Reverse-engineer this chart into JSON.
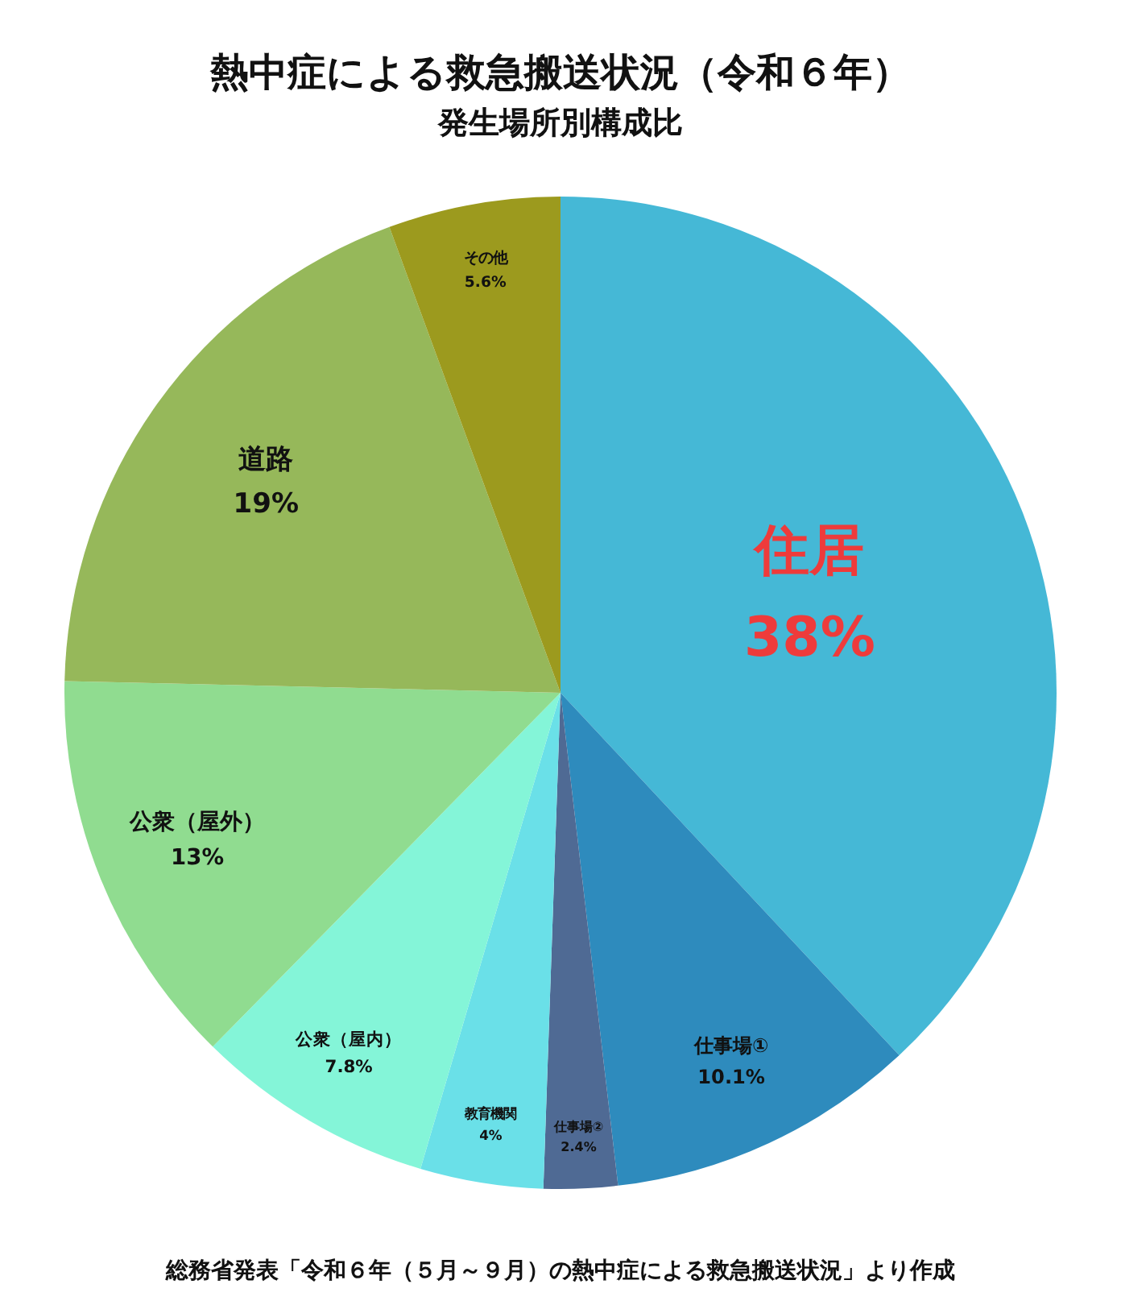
{
  "chart_data": {
    "type": "pie",
    "title": "熱中症による救急搬送状況（令和６年）",
    "subtitle": "発生場所別構成比",
    "categories": [
      "住居",
      "仕事場①",
      "仕事場②",
      "教育機関",
      "公衆（屋内）",
      "公衆（屋外）",
      "道路",
      "その他"
    ],
    "values": [
      38,
      10.1,
      2.4,
      4,
      7.8,
      13,
      19,
      5.6
    ],
    "value_labels": [
      "38%",
      "10.1%",
      "2.4%",
      "4%",
      "7.8%",
      "13%",
      "19%",
      "5.6%"
    ],
    "colors": [
      "#45b8d6",
      "#2e8bbd",
      "#4f6a94",
      "#6ae0e8",
      "#84f5d8",
      "#90dc90",
      "#96b85a",
      "#9c9a1e"
    ],
    "annotations": [
      "総務省発表「令和６年（５月～９月）の熱中症による救急搬送状況」より作成"
    ]
  }
}
